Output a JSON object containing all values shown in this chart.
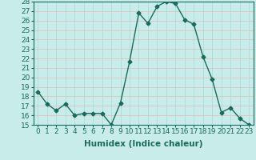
{
  "x": [
    0,
    1,
    2,
    3,
    4,
    5,
    6,
    7,
    8,
    9,
    10,
    11,
    12,
    13,
    14,
    15,
    16,
    17,
    18,
    19,
    20,
    21,
    22,
    23
  ],
  "y": [
    18.5,
    17.2,
    16.5,
    17.2,
    16.0,
    16.2,
    16.2,
    16.2,
    15.0,
    17.3,
    21.7,
    26.8,
    25.7,
    27.5,
    28.0,
    27.8,
    26.1,
    25.6,
    22.2,
    19.8,
    16.3,
    16.8,
    15.7,
    15.0
  ],
  "line_color": "#1a6b5a",
  "marker": "D",
  "markersize": 2.5,
  "bg_color": "#c8ecea",
  "grid_color_h": "#e8b8b8",
  "grid_color_v": "#a8d8d0",
  "xlabel": "Humidex (Indice chaleur)",
  "ylim": [
    15,
    28
  ],
  "xlim": [
    -0.5,
    23.5
  ],
  "yticks": [
    15,
    16,
    17,
    18,
    19,
    20,
    21,
    22,
    23,
    24,
    25,
    26,
    27,
    28
  ],
  "xticks": [
    0,
    1,
    2,
    3,
    4,
    5,
    6,
    7,
    8,
    9,
    10,
    11,
    12,
    13,
    14,
    15,
    16,
    17,
    18,
    19,
    20,
    21,
    22,
    23
  ],
  "xlabel_fontsize": 7.5,
  "tick_fontsize": 6.5,
  "linewidth": 1.0,
  "tick_color": "#1a6b5a"
}
